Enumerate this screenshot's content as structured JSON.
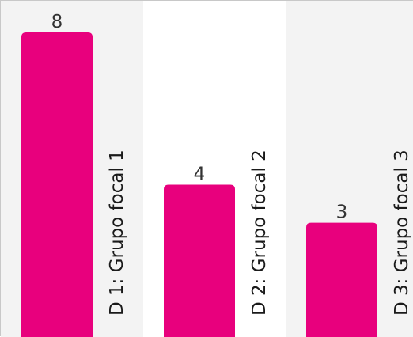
{
  "chart_data": {
    "type": "bar",
    "categories": [
      "D 1: Grupo focal 1",
      "D 2: Grupo focal 2",
      "D 3: Grupo focal 3"
    ],
    "values": [
      8,
      4,
      3
    ],
    "ylim": [
      0,
      8
    ],
    "bar_color": "#e8007d",
    "band_colors": [
      "#f3f3f3",
      "#ffffff",
      "#f3f3f3"
    ],
    "grid": false,
    "title": "",
    "xlabel": "",
    "ylabel": ""
  }
}
